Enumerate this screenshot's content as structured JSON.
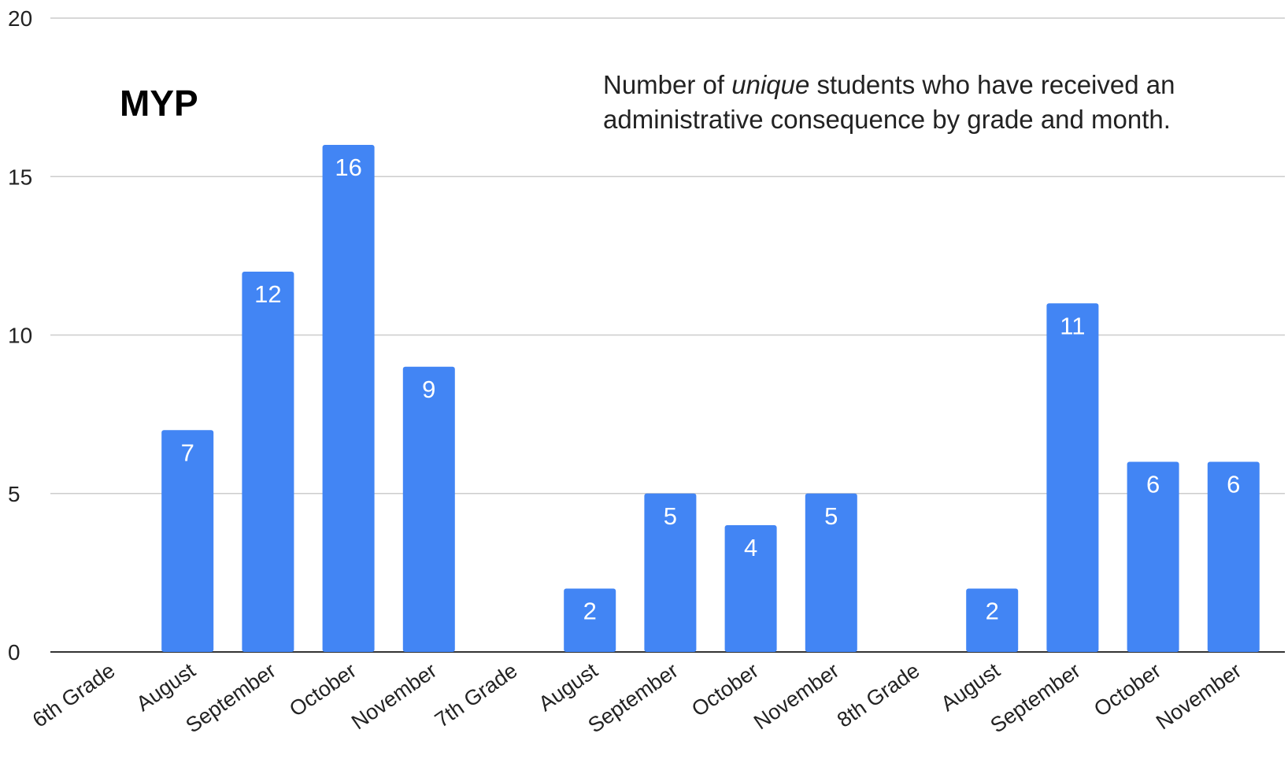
{
  "chart_data": {
    "type": "bar",
    "title": "MYP",
    "subtitle": {
      "before": "Number of ",
      "emphasis": "unique",
      "after": " students who have received an administrative consequence by grade and month."
    },
    "categories": [
      "6th Grade",
      "August",
      "September",
      "October",
      "November",
      "7th Grade",
      "August",
      "September",
      "October",
      "November",
      "8th Grade",
      "August",
      "September",
      "October",
      "November"
    ],
    "values": [
      null,
      7,
      12,
      16,
      9,
      null,
      2,
      5,
      4,
      5,
      null,
      2,
      11,
      6,
      6
    ],
    "ylim": [
      0,
      20
    ],
    "yticks": [
      0,
      5,
      10,
      15,
      20
    ],
    "xlabel": "",
    "ylabel": "",
    "grid": true,
    "data_labels": true,
    "bar_color": "#4285f4"
  }
}
